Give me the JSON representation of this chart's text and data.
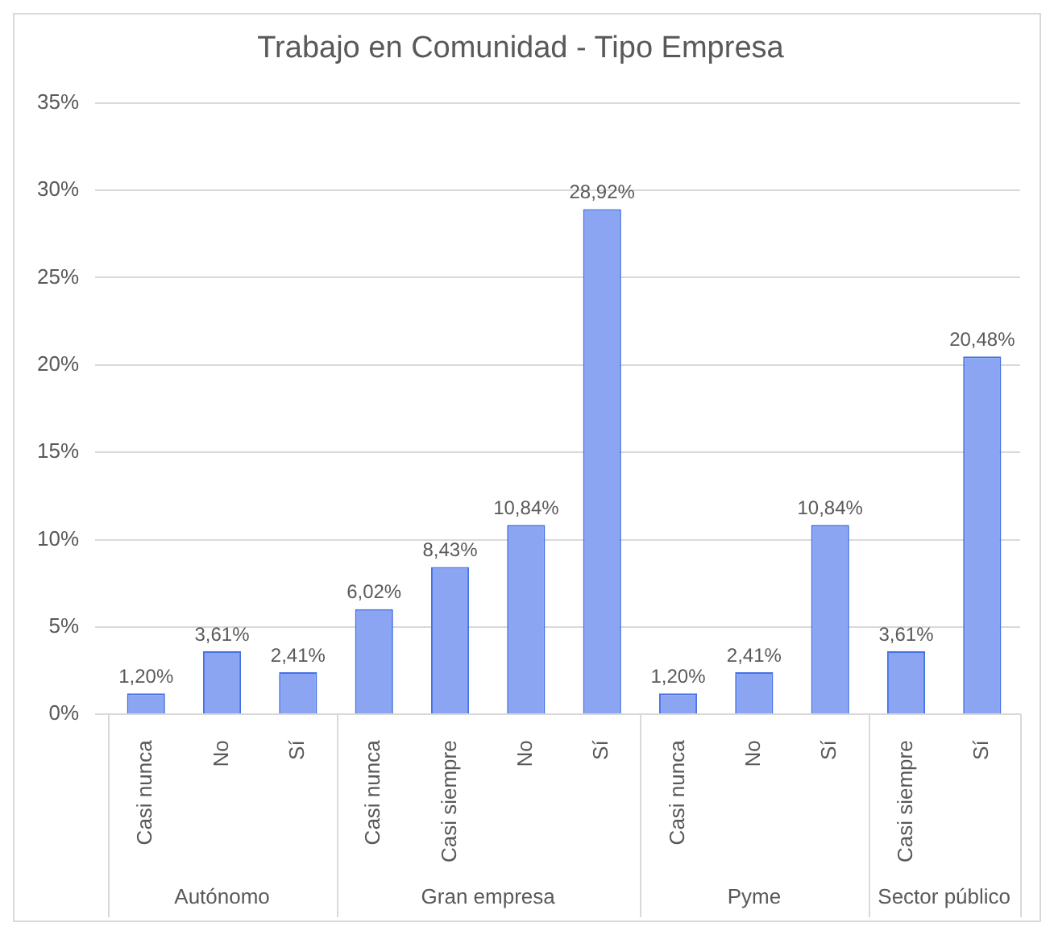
{
  "chart_data": {
    "type": "bar",
    "title": "Trabajo en Comunidad - Tipo Empresa",
    "categories": [
      "Casi nunca",
      "No",
      "Sí",
      "Casi nunca",
      "Casi siempre",
      "No",
      "Sí",
      "Casi nunca",
      "No",
      "Sí",
      "Casi siempre",
      "Sí"
    ],
    "values": [
      1.2,
      3.61,
      2.41,
      6.02,
      8.43,
      10.84,
      28.92,
      1.2,
      2.41,
      10.84,
      3.61,
      20.48
    ],
    "value_labels": [
      "1,20%",
      "3,61%",
      "2,41%",
      "6,02%",
      "8,43%",
      "10,84%",
      "28,92%",
      "1,20%",
      "2,41%",
      "10,84%",
      "3,61%",
      "20,48%"
    ],
    "color": "#8ca5f2",
    "ylim": [
      0,
      35
    ],
    "yticks": [
      {
        "value": 0,
        "label": "0%"
      },
      {
        "value": 5,
        "label": "5%"
      },
      {
        "value": 10,
        "label": "10%"
      },
      {
        "value": 15,
        "label": "15%"
      },
      {
        "value": 20,
        "label": "20%"
      },
      {
        "value": 25,
        "label": "25%"
      },
      {
        "value": 30,
        "label": "30%"
      },
      {
        "value": 35,
        "label": "35%"
      }
    ],
    "grid": "y",
    "legend": false,
    "annotations": [
      "Autónomo",
      "Gran empresa",
      "Pyme",
      "Sector público"
    ]
  }
}
